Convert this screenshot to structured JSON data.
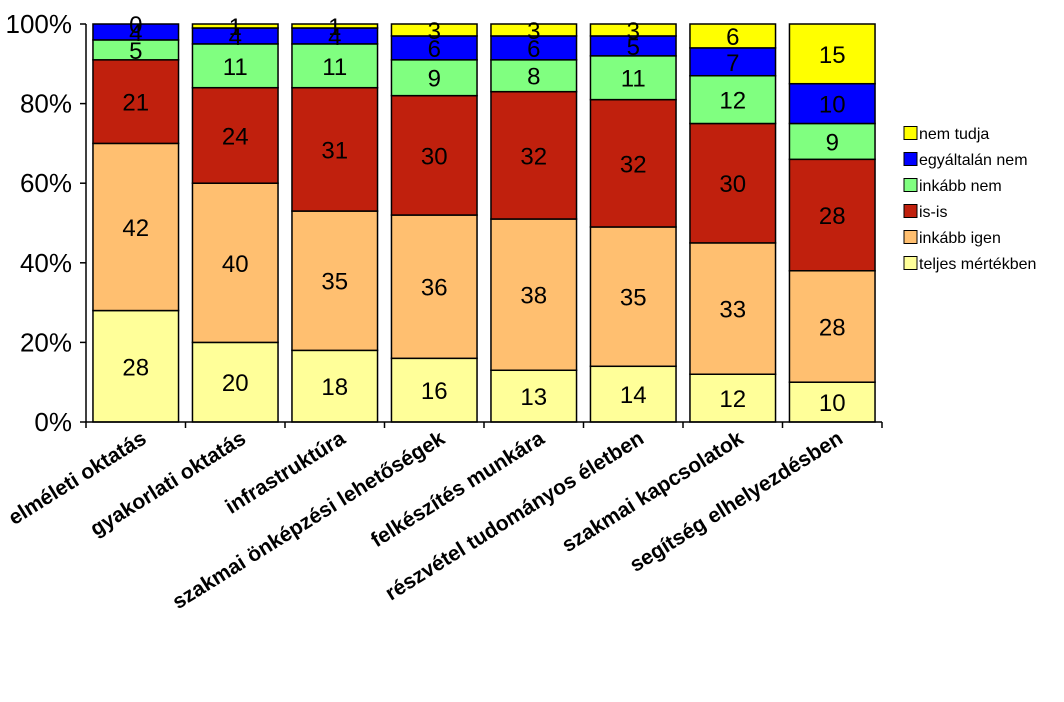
{
  "chart_data": {
    "type": "bar",
    "stacked": true,
    "percent_stacked": true,
    "categories": [
      "elméleti oktatás",
      "gyakorlati oktatás",
      "infrastruktúra",
      "szakmai önképzési lehetőségek",
      "felkészítés munkára",
      "részvétel tudományos életben",
      "szakmai kapcsolatok",
      "segítség elhelyezdésben"
    ],
    "series": [
      {
        "name": "teljes mértékben",
        "color": "#FFFF99",
        "values": [
          28,
          20,
          18,
          16,
          13,
          14,
          12,
          10
        ]
      },
      {
        "name": "inkább igen",
        "color": "#FFBF70",
        "values": [
          42,
          40,
          35,
          36,
          38,
          35,
          33,
          28
        ]
      },
      {
        "name": "is-is",
        "color": "#C0200D",
        "values": [
          21,
          24,
          31,
          30,
          32,
          32,
          30,
          28
        ]
      },
      {
        "name": "inkább nem",
        "color": "#80FF80",
        "values": [
          5,
          11,
          11,
          9,
          8,
          11,
          12,
          9
        ]
      },
      {
        "name": "egyáltalán nem",
        "color": "#0000FF",
        "values": [
          4,
          4,
          4,
          6,
          6,
          5,
          7,
          10
        ]
      },
      {
        "name": "nem tudja",
        "color": "#FFFF00",
        "values": [
          0,
          1,
          1,
          3,
          3,
          3,
          6,
          15
        ]
      }
    ],
    "y_ticks": [
      "0%",
      "20%",
      "40%",
      "60%",
      "80%",
      "100%"
    ],
    "ylim": [
      0,
      100
    ],
    "grid": false,
    "legend_position": "right",
    "legend_order": [
      "nem tudja",
      "egyáltalán nem",
      "inkább nem",
      "is-is",
      "inkább igen",
      "teljes mértékben"
    ]
  }
}
